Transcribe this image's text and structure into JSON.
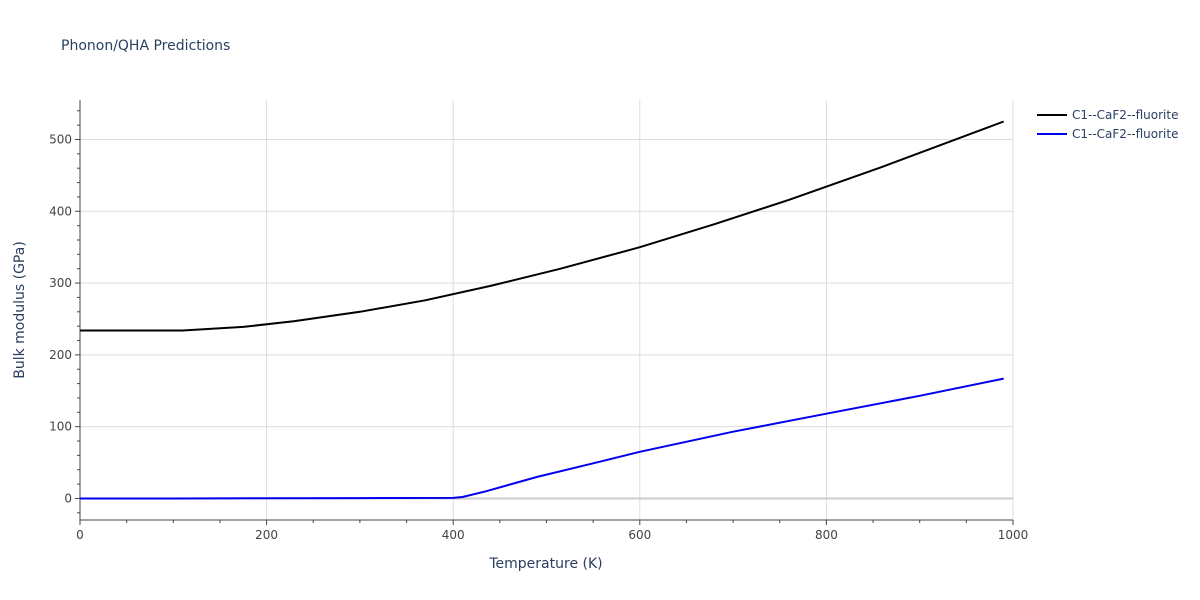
{
  "chart_data": {
    "type": "line",
    "title": "Phonon/QHA Predictions",
    "xlabel": "Temperature (K)",
    "ylabel": "Bulk modulus (GPa)",
    "xlim": [
      0,
      1000
    ],
    "ylim": [
      -30,
      555
    ],
    "x_ticks": [
      0,
      200,
      400,
      600,
      800,
      1000
    ],
    "y_ticks": [
      0,
      100,
      200,
      300,
      400,
      500
    ],
    "grid": true,
    "legend_position": "top-right",
    "series": [
      {
        "name": "C1--CaF2--fluorite",
        "color": "#000000",
        "x": [
          0,
          50,
          110,
          175,
          230,
          300,
          370,
          440,
          515,
          600,
          680,
          760,
          860,
          990
        ],
        "y": [
          234,
          234,
          234,
          239,
          247,
          260,
          276,
          296,
          320,
          350,
          382,
          416,
          462,
          525
        ]
      },
      {
        "name": "C1--CaF2--fluorite",
        "color": "#0000ee",
        "x": [
          0,
          100,
          200,
          300,
          400,
          410,
          435,
          490,
          550,
          600,
          700,
          800,
          900,
          990
        ],
        "y": [
          0,
          0,
          0.3,
          0.5,
          0.8,
          2,
          10,
          30,
          49,
          65,
          93,
          118,
          143,
          167
        ]
      }
    ]
  }
}
